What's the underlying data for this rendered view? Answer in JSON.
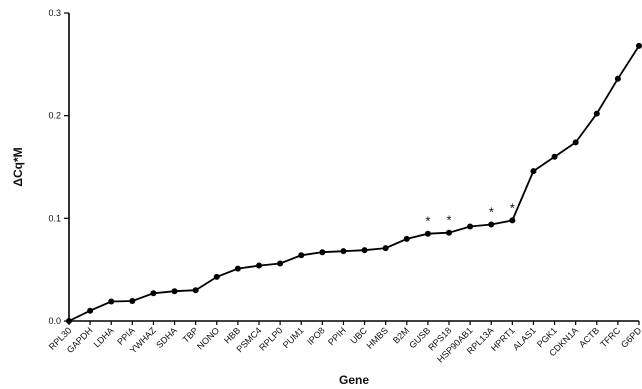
{
  "chart_data": {
    "type": "line",
    "xlabel": "Gene",
    "ylabel": "ΔCq*M",
    "ylim": [
      0,
      0.3
    ],
    "yticks": [
      "0.0",
      "0.1",
      "0.2",
      "0.3"
    ],
    "grid": false,
    "legend": "none",
    "line_color": "#000000",
    "categories": [
      "RPL30",
      "GAPDH",
      "LDHA",
      "PPIA",
      "YWHAZ",
      "SDHA",
      "TBP",
      "NONO",
      "HBB",
      "PSMC4",
      "RPLP0",
      "PUM1",
      "IPO8",
      "PPIH",
      "UBC",
      "HMBS",
      "B2M",
      "GUSB",
      "RPS18",
      "HSP90AB1",
      "RPL13A",
      "HPRT1",
      "ALAS1",
      "PGK1",
      "CDKN1A",
      "ACTB",
      "TFRC",
      "G6PD"
    ],
    "values": [
      0.0,
      0.01,
      0.019,
      0.0195,
      0.027,
      0.029,
      0.03,
      0.043,
      0.051,
      0.054,
      0.056,
      0.064,
      0.067,
      0.068,
      0.069,
      0.071,
      0.08,
      0.085,
      0.086,
      0.092,
      0.094,
      0.098,
      0.146,
      0.16,
      0.174,
      0.202,
      0.236,
      0.268
    ],
    "annotations": [
      {
        "text": "*",
        "category": "GUSB"
      },
      {
        "text": "*",
        "category": "RPS18"
      },
      {
        "text": "*",
        "category": "RPL13A"
      },
      {
        "text": "*",
        "category": "HPRT1"
      }
    ]
  }
}
